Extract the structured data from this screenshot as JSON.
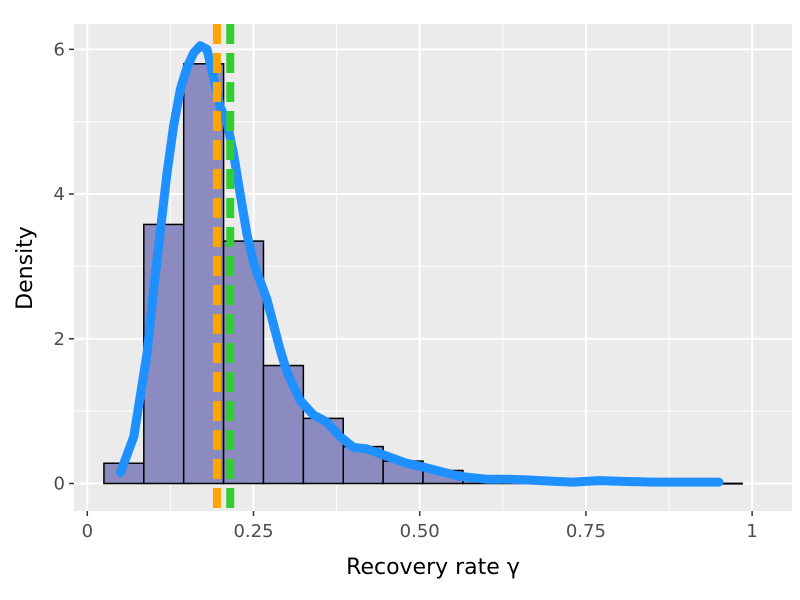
{
  "chart_data": {
    "type": "histogram",
    "xlabel": "Recovery rate γ",
    "ylabel": "Density",
    "xlim": [
      -0.02,
      1.06
    ],
    "ylim": [
      -0.38,
      6.35
    ],
    "x_ticks": [
      {
        "value": 0,
        "label": "0"
      },
      {
        "value": 0.25,
        "label": "0.25"
      },
      {
        "value": 0.5,
        "label": "0.50"
      },
      {
        "value": 0.75,
        "label": "0.75"
      },
      {
        "value": 1,
        "label": "1"
      }
    ],
    "y_ticks": [
      {
        "value": 0,
        "label": "0"
      },
      {
        "value": 2,
        "label": "2"
      },
      {
        "value": 4,
        "label": "4"
      },
      {
        "value": 6,
        "label": "6"
      }
    ],
    "grid": true,
    "background": "#ebebeb",
    "bins": {
      "width": 0.06,
      "fill": "#8b8bc0",
      "edge": "#000000",
      "edges": [
        0.025,
        0.085,
        0.145,
        0.205,
        0.265,
        0.325,
        0.385,
        0.445,
        0.505,
        0.565,
        0.625,
        0.685,
        0.745,
        0.805,
        0.865,
        0.925,
        0.985
      ],
      "values": [
        0.28,
        3.58,
        5.8,
        3.35,
        1.63,
        0.9,
        0.51,
        0.31,
        0.18,
        0.07,
        0.04,
        0.02,
        0.01,
        0.005,
        0.003,
        0.002
      ]
    },
    "density": {
      "color": "#1e90ff",
      "x": [
        0.05,
        0.07,
        0.09,
        0.1,
        0.11,
        0.12,
        0.13,
        0.14,
        0.15,
        0.16,
        0.17,
        0.18,
        0.19,
        0.2,
        0.21,
        0.22,
        0.23,
        0.24,
        0.25,
        0.26,
        0.27,
        0.28,
        0.29,
        0.3,
        0.32,
        0.34,
        0.36,
        0.38,
        0.4,
        0.42,
        0.45,
        0.48,
        0.5,
        0.53,
        0.56,
        0.6,
        0.63,
        0.66,
        0.7,
        0.73,
        0.77,
        0.8,
        0.85,
        0.9,
        0.95
      ],
      "y": [
        0.15,
        0.65,
        1.8,
        2.7,
        3.5,
        4.3,
        4.95,
        5.45,
        5.75,
        5.95,
        6.05,
        6.0,
        5.6,
        5.2,
        5.0,
        4.55,
        4.0,
        3.45,
        3.05,
        2.8,
        2.55,
        2.2,
        1.85,
        1.55,
        1.15,
        0.95,
        0.85,
        0.65,
        0.5,
        0.48,
        0.38,
        0.28,
        0.24,
        0.17,
        0.1,
        0.06,
        0.06,
        0.05,
        0.03,
        0.02,
        0.04,
        0.03,
        0.02,
        0.02,
        0.02
      ]
    },
    "vlines": [
      {
        "x": 0.195,
        "color": "#ffa500",
        "style": "dashed"
      },
      {
        "x": 0.215,
        "color": "#32cd32",
        "style": "dashed"
      }
    ]
  }
}
